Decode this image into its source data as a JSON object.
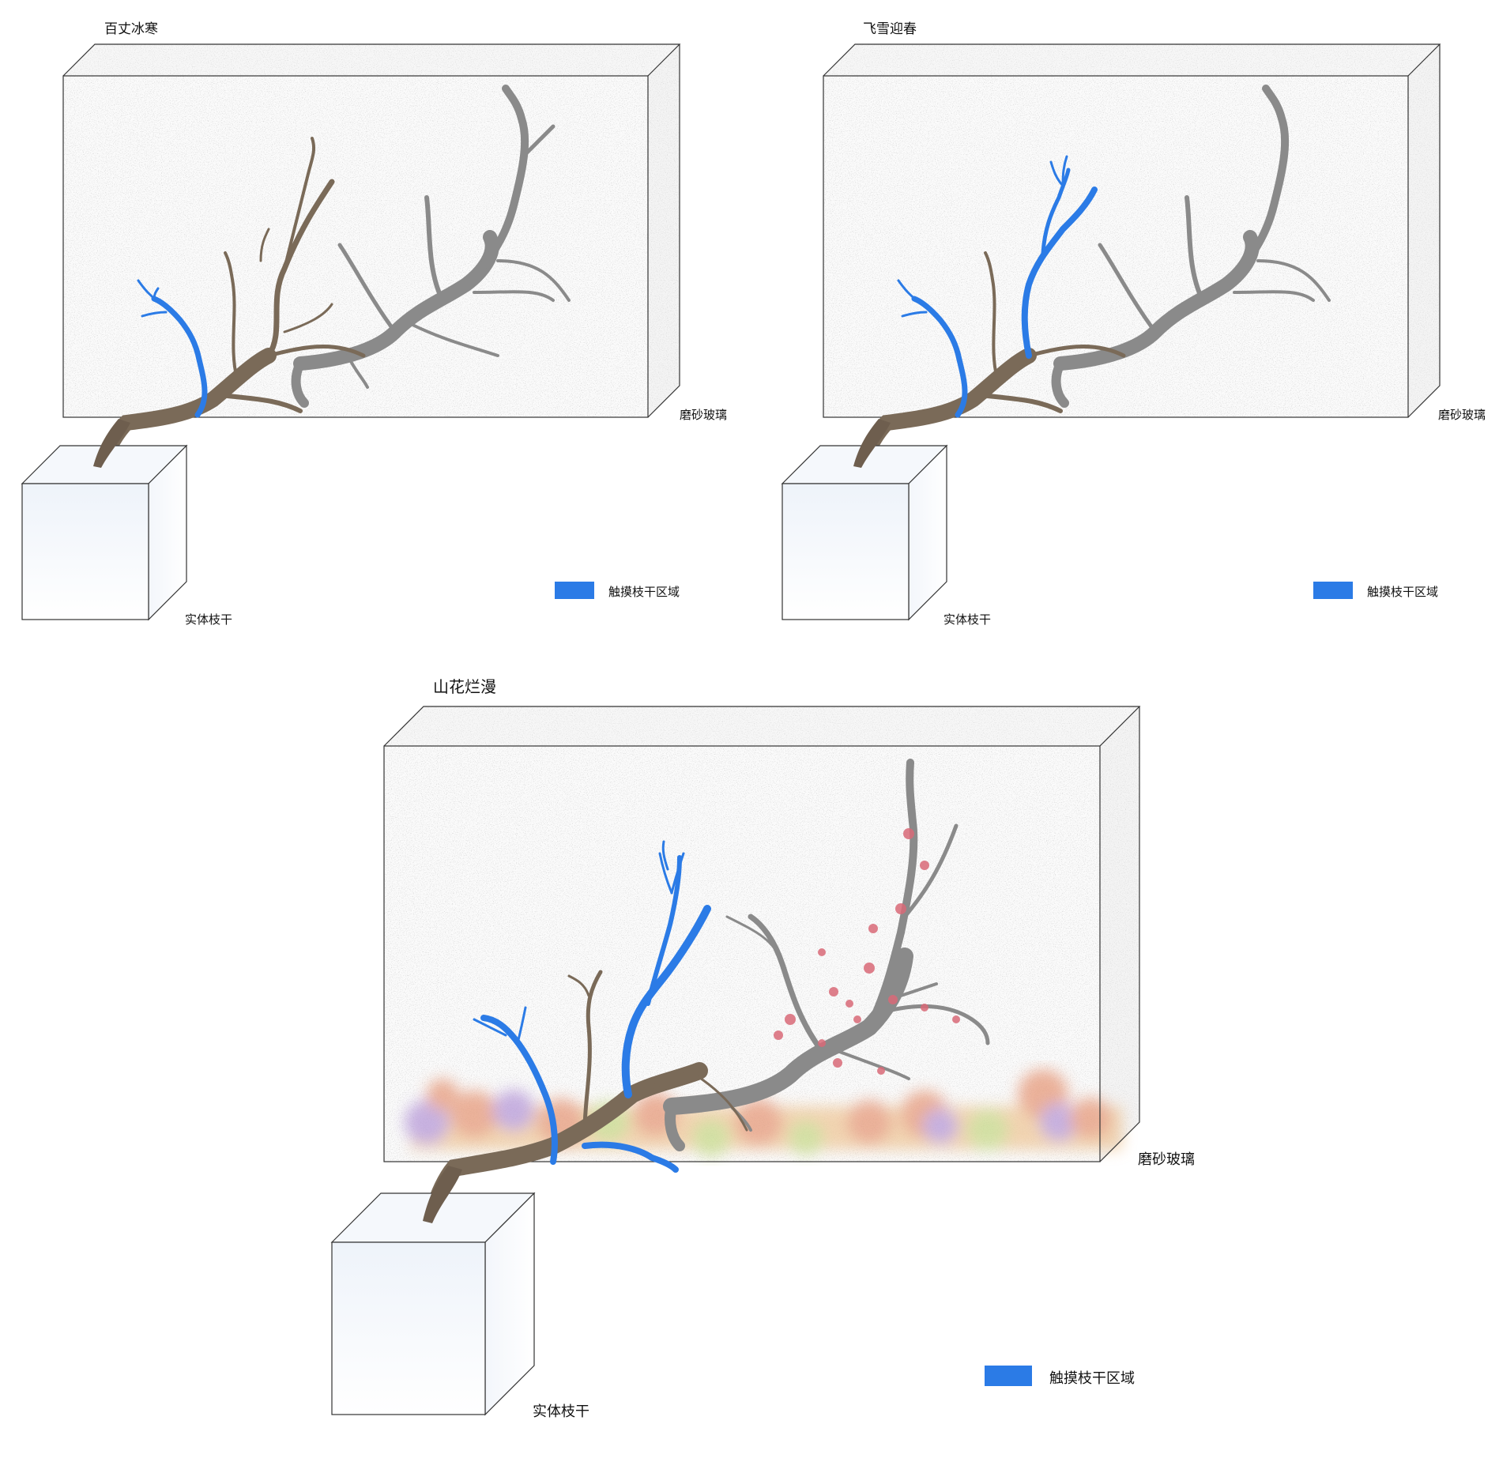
{
  "panels": [
    {
      "title": "百丈冰寒",
      "glass_label": "磨砂玻璃",
      "base_label": "实体枝干",
      "legend_label": "触摸枝干区域"
    },
    {
      "title": "飞雪迎春",
      "glass_label": "磨砂玻璃",
      "base_label": "实体枝干",
      "legend_label": "触摸枝干区域"
    },
    {
      "title": "山花烂漫",
      "glass_label": "磨砂玻璃",
      "base_label": "实体枝干",
      "legend_label": "触摸枝干区域"
    }
  ],
  "colors": {
    "touch_area": "#2b7be6",
    "real_branch": "#7a6a58",
    "shadow_branch": "#8a8a8a",
    "blossom": "#d96a78",
    "flower_bed": "#e8b07a"
  }
}
